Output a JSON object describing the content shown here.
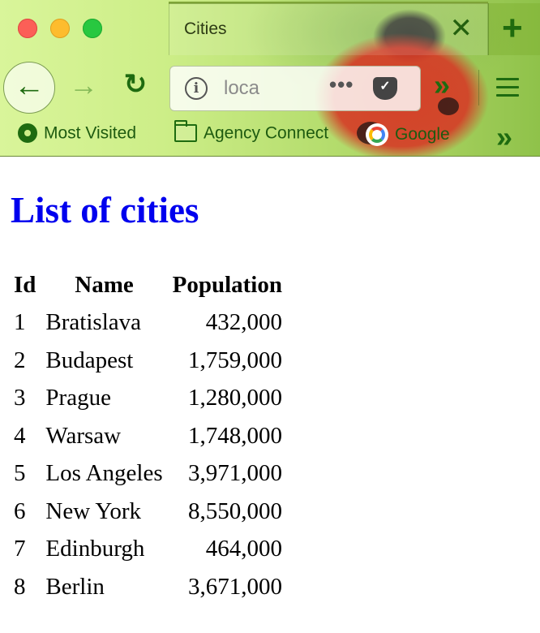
{
  "browser": {
    "tab": {
      "title": "Cities",
      "close_glyph": "✕"
    },
    "new_tab_glyph": "+",
    "address_bar": {
      "text": "loca"
    },
    "bookmarks": [
      {
        "icon": "gear-icon",
        "label": "Most Visited"
      },
      {
        "icon": "folder-icon",
        "label": "Agency Connect"
      },
      {
        "icon": "google-icon",
        "label": "Google"
      }
    ]
  },
  "page": {
    "heading": "List of cities",
    "table": {
      "headers": [
        "Id",
        "Name",
        "Population"
      ],
      "rows": [
        {
          "id": "1",
          "name": "Bratislava",
          "population": "432,000"
        },
        {
          "id": "2",
          "name": "Budapest",
          "population": "1,759,000"
        },
        {
          "id": "3",
          "name": "Prague",
          "population": "1,280,000"
        },
        {
          "id": "4",
          "name": "Warsaw",
          "population": "1,748,000"
        },
        {
          "id": "5",
          "name": "Los Angeles",
          "population": "3,971,000"
        },
        {
          "id": "6",
          "name": "New York",
          "population": "8,550,000"
        },
        {
          "id": "7",
          "name": "Edinburgh",
          "population": "464,000"
        },
        {
          "id": "8",
          "name": "Berlin",
          "population": "3,671,000"
        }
      ]
    }
  },
  "colors": {
    "heading": "#0000ee",
    "toolbar_icon": "#1e6b10"
  }
}
